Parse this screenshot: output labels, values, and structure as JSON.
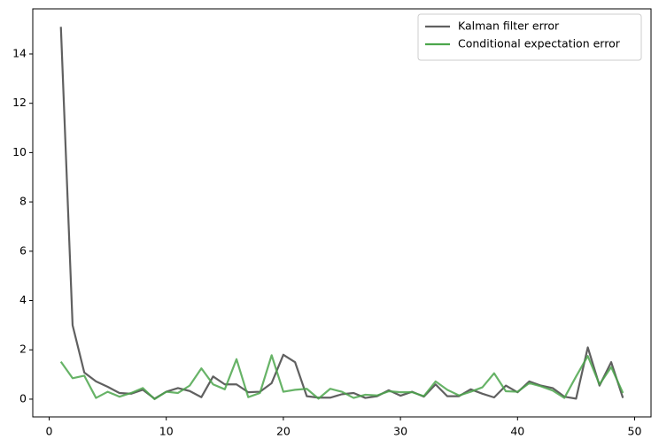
{
  "chart_data": {
    "type": "line",
    "x": [
      1,
      2,
      3,
      4,
      5,
      6,
      7,
      8,
      9,
      10,
      11,
      12,
      13,
      14,
      15,
      16,
      17,
      18,
      19,
      20,
      21,
      22,
      23,
      24,
      25,
      26,
      27,
      28,
      29,
      30,
      31,
      32,
      33,
      34,
      35,
      36,
      37,
      38,
      39,
      40,
      41,
      42,
      43,
      44,
      45,
      46,
      47,
      48,
      49
    ],
    "series": [
      {
        "name": "Kalman filter error",
        "color": "#606060",
        "values": [
          15.1,
          3.0,
          1.08,
          0.72,
          0.5,
          0.25,
          0.22,
          0.38,
          0.02,
          0.3,
          0.45,
          0.33,
          0.08,
          0.92,
          0.6,
          0.6,
          0.28,
          0.3,
          0.65,
          1.8,
          1.5,
          0.12,
          0.06,
          0.06,
          0.2,
          0.25,
          0.05,
          0.12,
          0.36,
          0.14,
          0.3,
          0.1,
          0.6,
          0.12,
          0.12,
          0.4,
          0.22,
          0.07,
          0.55,
          0.28,
          0.72,
          0.55,
          0.45,
          0.1,
          0.02,
          2.1,
          0.55,
          1.5,
          0.05
        ]
      },
      {
        "name": "Conditional expectation error",
        "color": "#4ca64c",
        "values": [
          1.52,
          0.85,
          0.95,
          0.05,
          0.3,
          0.1,
          0.25,
          0.45,
          0.0,
          0.3,
          0.25,
          0.55,
          1.25,
          0.6,
          0.4,
          1.62,
          0.08,
          0.25,
          1.78,
          0.3,
          0.38,
          0.42,
          0.02,
          0.42,
          0.3,
          0.05,
          0.18,
          0.15,
          0.32,
          0.28,
          0.28,
          0.12,
          0.72,
          0.38,
          0.15,
          0.3,
          0.48,
          1.05,
          0.32,
          0.3,
          0.65,
          0.52,
          0.35,
          0.05,
          0.92,
          1.75,
          0.6,
          1.3,
          0.25
        ]
      }
    ],
    "xlim": [
      -1.4,
      51.4
    ],
    "xticks": [
      0,
      10,
      20,
      30,
      40,
      50
    ],
    "ylim": [
      -0.72,
      15.83
    ],
    "yticks": [
      0,
      2,
      4,
      6,
      8,
      10,
      12,
      14
    ],
    "legend": "upper right"
  }
}
